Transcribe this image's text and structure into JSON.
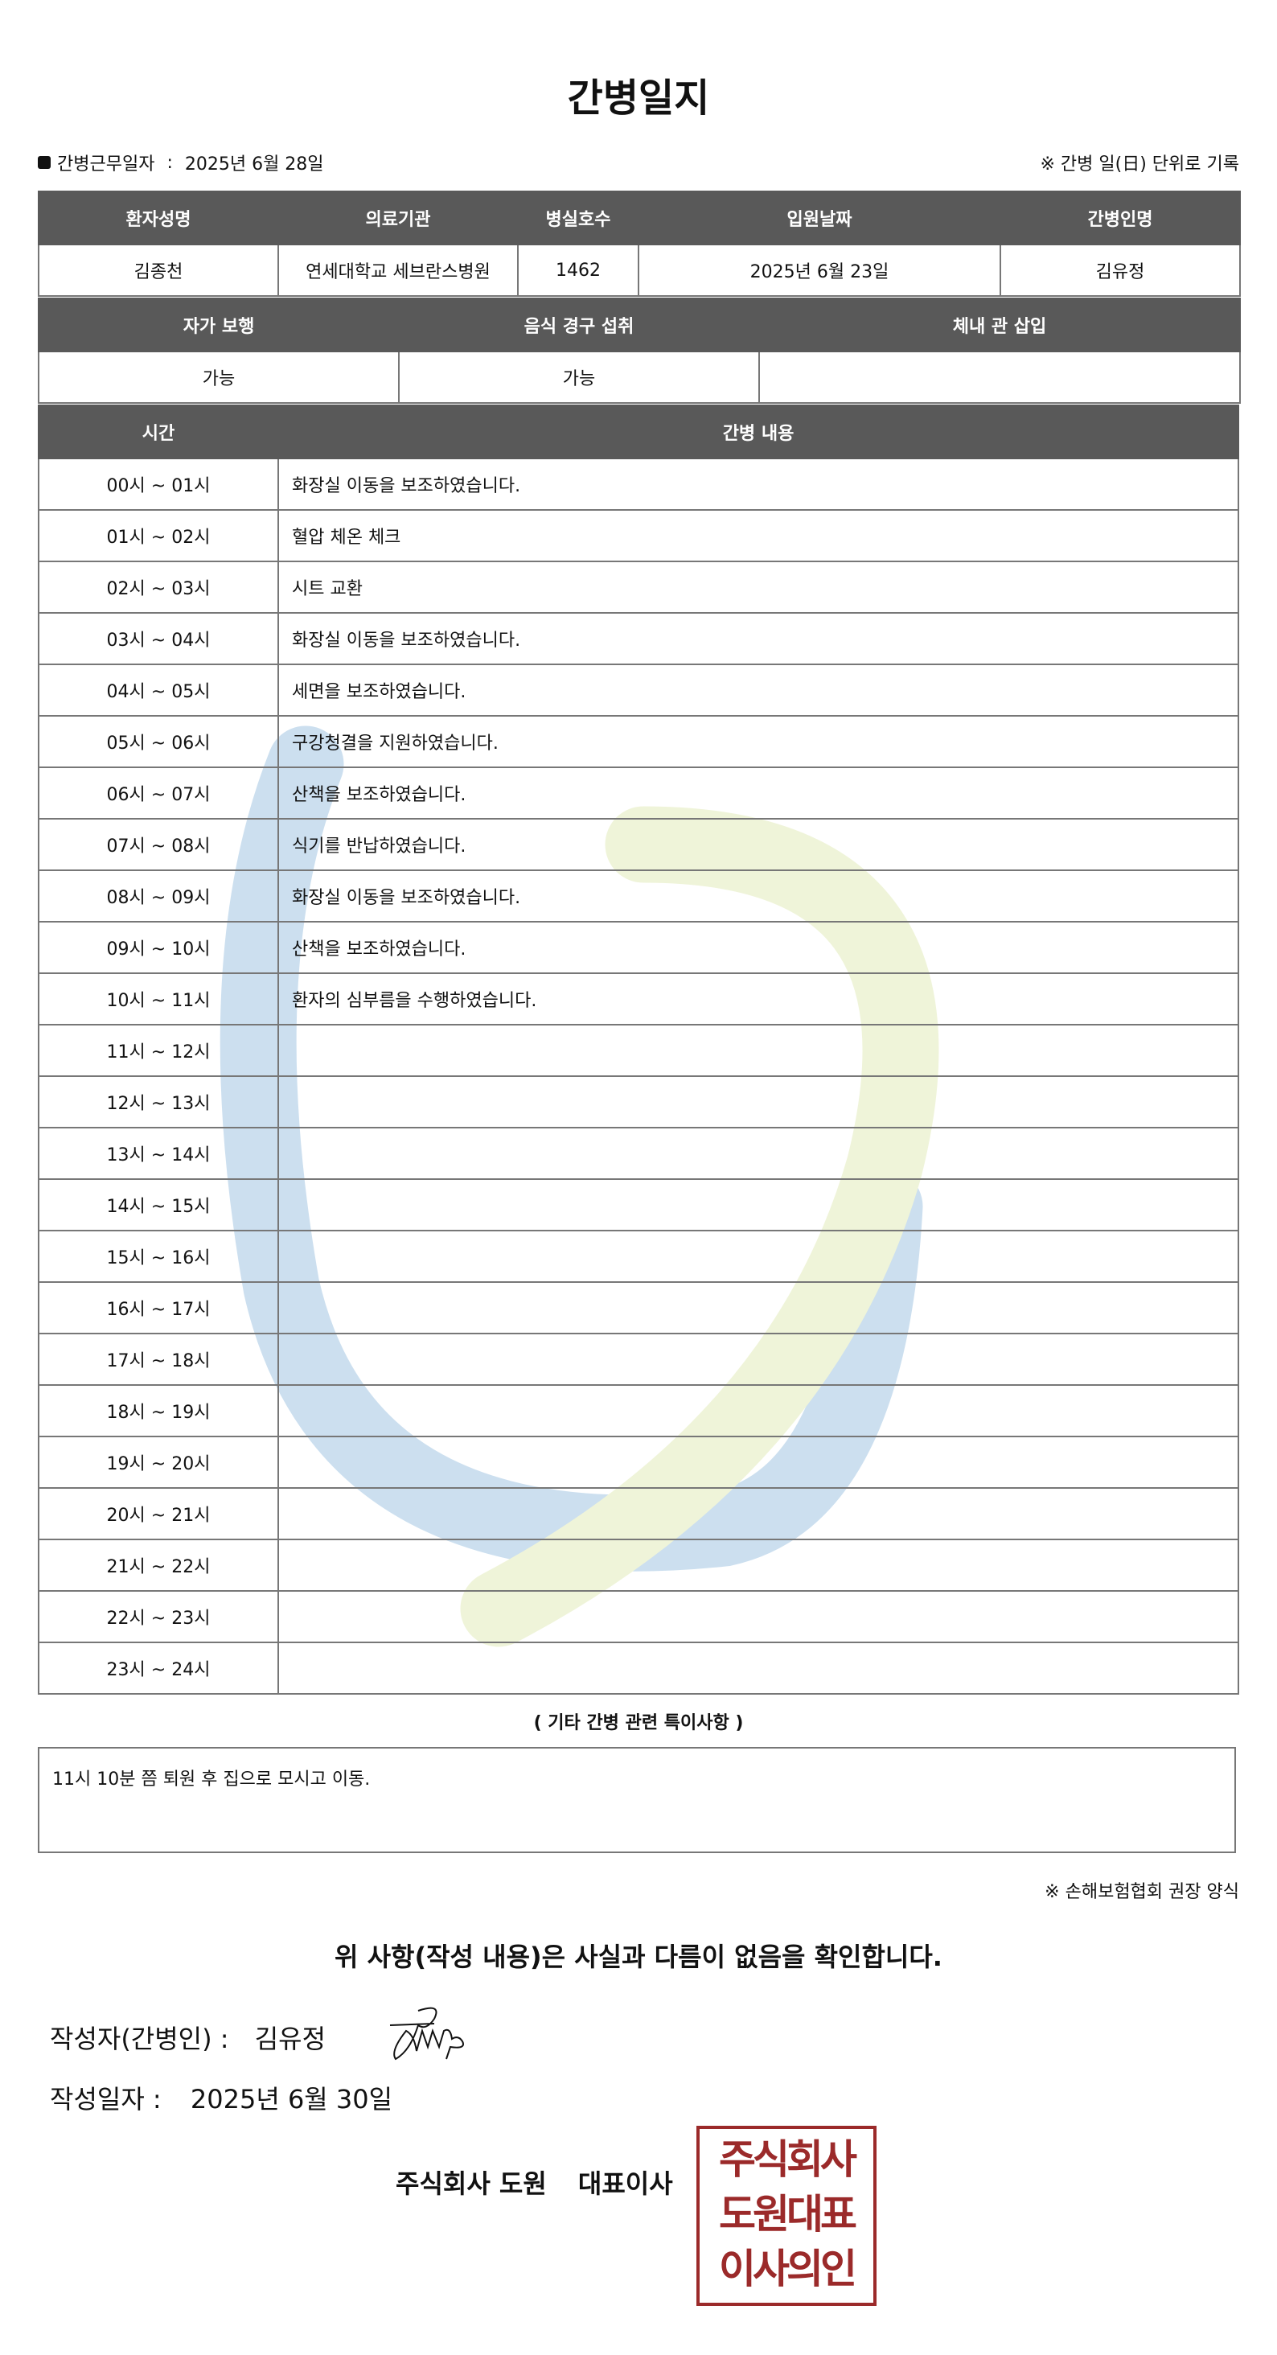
{
  "title": "간병일지",
  "duty_date_label": "간병근무일자",
  "duty_date": "2025년 6월 28일",
  "unit_note": "※ 간병 일(日) 단위로 기록",
  "patient_table": {
    "headers": [
      "환자성명",
      "의료기관",
      "병실호수",
      "입원날짜",
      "간병인명"
    ],
    "values": [
      "김종천",
      "연세대학교 세브란스병원",
      "1462",
      "2025년 6월 23일",
      "김유정"
    ]
  },
  "status_table": {
    "headers": [
      "자가 보행",
      "음식 경구 섭취",
      "체내 관 삽입"
    ],
    "values": [
      "가능",
      "가능",
      ""
    ]
  },
  "log_table": {
    "headers": [
      "시간",
      "간병 내용"
    ],
    "rows": [
      {
        "time": "00시 ~ 01시",
        "content": "화장실 이동을 보조하였습니다."
      },
      {
        "time": "01시 ~ 02시",
        "content": "혈압 체온 체크"
      },
      {
        "time": "02시 ~ 03시",
        "content": "시트 교환"
      },
      {
        "time": "03시 ~ 04시",
        "content": "화장실 이동을 보조하였습니다."
      },
      {
        "time": "04시 ~ 05시",
        "content": "세면을 보조하였습니다."
      },
      {
        "time": "05시 ~ 06시",
        "content": "구강청결을 지원하였습니다."
      },
      {
        "time": "06시 ~ 07시",
        "content": "산책을 보조하였습니다."
      },
      {
        "time": "07시 ~ 08시",
        "content": "식기를 반납하였습니다."
      },
      {
        "time": "08시 ~ 09시",
        "content": "화장실 이동을 보조하였습니다."
      },
      {
        "time": "09시 ~ 10시",
        "content": "산책을 보조하였습니다."
      },
      {
        "time": "10시 ~ 11시",
        "content": "환자의 심부름을 수행하였습니다."
      },
      {
        "time": "11시 ~ 12시",
        "content": ""
      },
      {
        "time": "12시 ~ 13시",
        "content": ""
      },
      {
        "time": "13시 ~ 14시",
        "content": ""
      },
      {
        "time": "14시 ~ 15시",
        "content": ""
      },
      {
        "time": "15시 ~ 16시",
        "content": ""
      },
      {
        "time": "16시 ~ 17시",
        "content": ""
      },
      {
        "time": "17시 ~ 18시",
        "content": ""
      },
      {
        "time": "18시 ~ 19시",
        "content": ""
      },
      {
        "time": "19시 ~ 20시",
        "content": ""
      },
      {
        "time": "20시 ~ 21시",
        "content": ""
      },
      {
        "time": "21시 ~ 22시",
        "content": ""
      },
      {
        "time": "22시 ~ 23시",
        "content": ""
      },
      {
        "time": "23시 ~ 24시",
        "content": ""
      }
    ]
  },
  "notes_title": "( 기타 간병 관련 특이사항 )",
  "notes": "11시 10분 쯤 퇴원 후 집으로 모시고 이동.",
  "form_note": "※ 손해보험협회 권장 양식",
  "confirm_text": "위 사항(작성 내용)은 사실과 다름이 없음을 확인합니다.",
  "author_label": "작성자(간병인) :",
  "author_name": "김유정",
  "written_date_label": "작성일자 :",
  "written_date": "2025년 6월 30일",
  "company": "주식회사 도원",
  "company_role": "대표이사",
  "seal_text": [
    "주식회사",
    "도원대표",
    "이사의인"
  ],
  "colors": {
    "header_bg": "#595959",
    "seal": "#9b2a2a",
    "watermark_blue": "#4a90c8",
    "watermark_green": "#c8d87a"
  }
}
